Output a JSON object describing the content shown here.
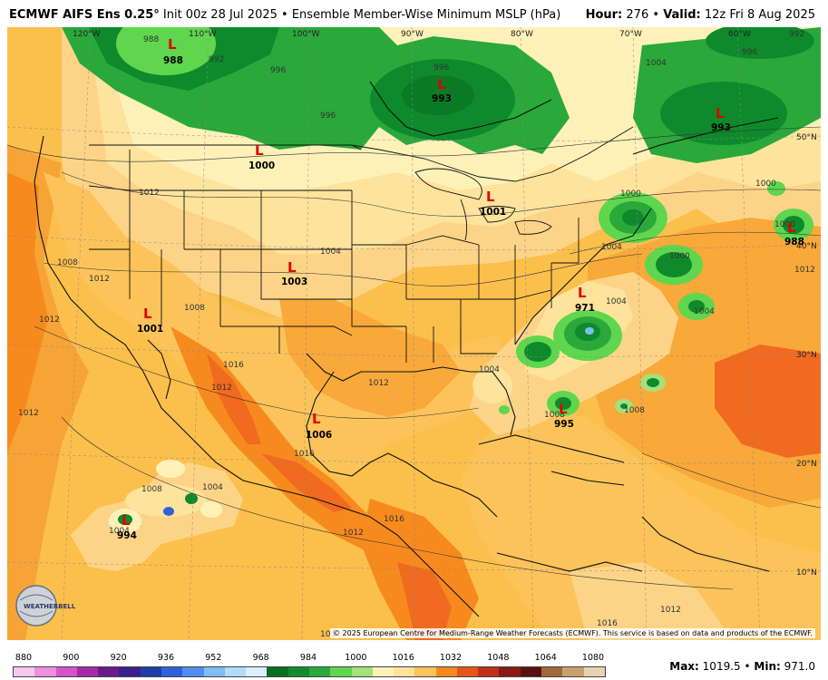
{
  "title": {
    "model": "ECMWF AIFS Ens 0.25°",
    "init": "Init 00z 28 Jul 2025",
    "product": "Ensemble Member-Wise Minimum MSLP (hPa)",
    "hour_label": "Hour:",
    "hour": "276",
    "valid_label": "Valid:",
    "valid": "12z Fri 8 Aug 2025"
  },
  "map": {
    "longitudes": [
      "120°W",
      "110°W",
      "100°W",
      "90°W",
      "80°W",
      "70°W",
      "60°W"
    ],
    "latitudes": [
      "50°N",
      "40°N",
      "30°N",
      "20°N",
      "10°N"
    ],
    "lows": [
      {
        "id": "nw",
        "value": "988"
      },
      {
        "id": "hudson",
        "value": "993"
      },
      {
        "id": "quebec",
        "value": "993"
      },
      {
        "id": "montana",
        "value": "1000"
      },
      {
        "id": "michigan",
        "value": "1001"
      },
      {
        "id": "kansas",
        "value": "1003"
      },
      {
        "id": "arizona",
        "value": "1001"
      },
      {
        "id": "texas",
        "value": "1006"
      },
      {
        "id": "carolina",
        "value": "971"
      },
      {
        "id": "bahamas",
        "value": "995"
      },
      {
        "id": "pacific",
        "value": "994"
      },
      {
        "id": "atlantic_east",
        "value": "988"
      }
    ],
    "isobar_labels": [
      "988",
      "992",
      "996",
      "996",
      "1004",
      "1000",
      "1012",
      "1008",
      "1012",
      "1016",
      "1012",
      "1004",
      "1016",
      "1016",
      "1012",
      "1008",
      "1012",
      "1004",
      "1008",
      "1004",
      "1000",
      "1000",
      "1004",
      "1004",
      "1012",
      "1012",
      "1004",
      "1004",
      "1008",
      "1012",
      "1012",
      "1008",
      "1000",
      "996",
      "996",
      "1016",
      "1012",
      "992"
    ],
    "colors": {
      "ocean_base": "#fbbf4c",
      "land_base": "#fbc35a",
      "high": "#f78a1e",
      "very_high": "#f06a1f",
      "mid": "#fdd487",
      "light": "#fde39b",
      "pale": "#fef1b8",
      "green_dark": "#0e8a2c",
      "green_mid": "#2aa83a",
      "green_light": "#5fd64e",
      "green_pale": "#a5e07a"
    }
  },
  "legend": {
    "ticks": [
      "880",
      "900",
      "920",
      "936",
      "952",
      "968",
      "984",
      "1000",
      "1016",
      "1032",
      "1048",
      "1064",
      "1080"
    ],
    "colors": [
      "#f7c7ef",
      "#ef8fe0",
      "#d653c8",
      "#a52aa8",
      "#6b1a8a",
      "#3b1f8a",
      "#1f3da8",
      "#2f62d8",
      "#4f8ff0",
      "#7fbdf7",
      "#b0dcf8",
      "#d8f0fb",
      "#0a6e22",
      "#138a2c",
      "#2aa83a",
      "#5fd64e",
      "#a5e07a",
      "#fef1b8",
      "#fde39b",
      "#fbc35a",
      "#f78a1e",
      "#e8541a",
      "#c0301a",
      "#8c1a14",
      "#5a120e",
      "#a06a3a",
      "#c9a16a",
      "#e6d3b0"
    ]
  },
  "footer": {
    "max_label": "Max:",
    "max": "1019.5",
    "min_label": "Min:",
    "min": "971.0",
    "copyright": "© 2025 European Centre for Medium-Range Weather Forecasts (ECMWF). This service is based on data and products of the ECMWF."
  },
  "logo": {
    "text": "WEATHERBELL"
  }
}
